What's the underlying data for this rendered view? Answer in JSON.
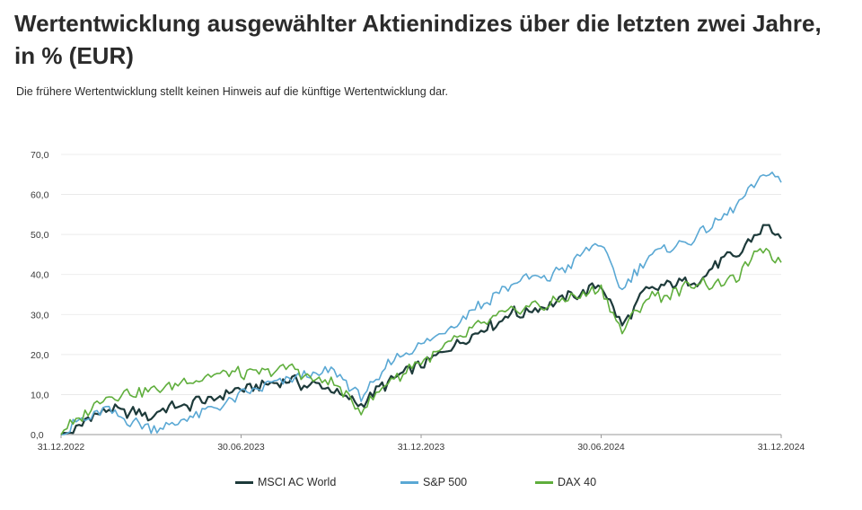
{
  "title": "Wertentwicklung ausgewählter Aktienindizes über die letzten zwei Jahre, in % (EUR)",
  "subtitle": "Die frühere Wertentwicklung stellt keinen Hinweis auf die künftige Wertentwicklung dar.",
  "chart_data": {
    "type": "line",
    "ylim": [
      0,
      70
    ],
    "yticks": [
      "0,0",
      "10,0",
      "20,0",
      "30,0",
      "40,0",
      "50,0",
      "60,0",
      "70,0"
    ],
    "xticks": [
      "31.12.2022",
      "30.06.2023",
      "31.12.2023",
      "30.06.2024",
      "31.12.2024"
    ],
    "x_months": [
      0,
      1.5,
      3,
      4.5,
      6,
      7.5,
      9,
      10,
      11,
      12,
      13.5,
      15,
      16.5,
      18,
      18.7,
      19.5,
      21,
      22.5,
      23.5,
      24
    ],
    "series": [
      {
        "name": "MSCI AC World",
        "color": "#1d3a3a",
        "width": 2.2,
        "values": [
          0,
          6,
          5,
          8,
          11,
          13,
          12,
          7,
          14,
          18,
          24,
          30,
          33,
          38,
          28,
          36,
          38,
          45,
          52,
          49
        ]
      },
      {
        "name": "S&P 500",
        "color": "#5aa8d4",
        "width": 1.6,
        "values": [
          0,
          7,
          1,
          5,
          10,
          13,
          16,
          9,
          18,
          22,
          30,
          38,
          40,
          48,
          36,
          44,
          48,
          57,
          66,
          63
        ]
      },
      {
        "name": "DAX 40",
        "color": "#5fae3c",
        "width": 1.6,
        "values": [
          0,
          10,
          11,
          14,
          15,
          17,
          13,
          6,
          14,
          18,
          25,
          31,
          33,
          36,
          25,
          34,
          37,
          39,
          47,
          43
        ]
      }
    ]
  },
  "legend": [
    "MSCI AC World",
    "S&P 500",
    "DAX 40"
  ]
}
